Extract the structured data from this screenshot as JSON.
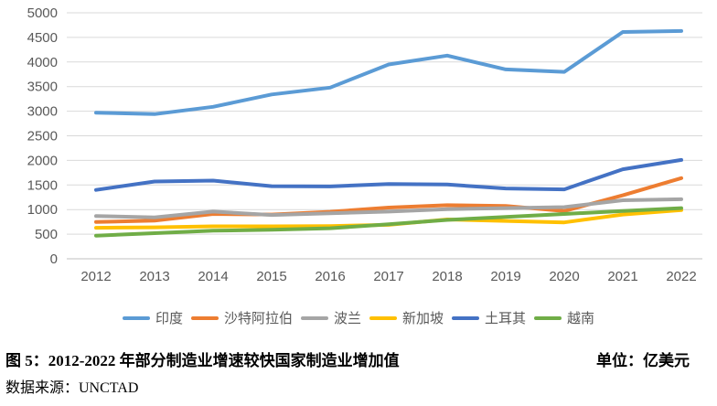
{
  "chart_data": {
    "type": "line",
    "title": "",
    "xlabel": "",
    "ylabel": "",
    "categories": [
      "2012",
      "2013",
      "2014",
      "2015",
      "2016",
      "2017",
      "2018",
      "2019",
      "2020",
      "2021",
      "2022"
    ],
    "series": [
      {
        "name": "印度",
        "color": "#5B9BD5",
        "values": [
          2970,
          2940,
          3090,
          3340,
          3480,
          3950,
          4130,
          3850,
          3800,
          4610,
          4630
        ]
      },
      {
        "name": "沙特阿拉伯",
        "color": "#ED7D31",
        "values": [
          750,
          775,
          910,
          900,
          955,
          1040,
          1090,
          1075,
          970,
          1290,
          1640
        ]
      },
      {
        "name": "波兰",
        "color": "#A5A5A5",
        "values": [
          870,
          840,
          960,
          890,
          925,
          960,
          1010,
          1030,
          1050,
          1190,
          1210
        ]
      },
      {
        "name": "新加坡",
        "color": "#FFC000",
        "values": [
          630,
          640,
          660,
          660,
          665,
          690,
          800,
          770,
          740,
          900,
          990
        ]
      },
      {
        "name": "土耳其",
        "color": "#4472C4",
        "values": [
          1400,
          1570,
          1590,
          1475,
          1470,
          1520,
          1510,
          1430,
          1410,
          1820,
          2010
        ]
      },
      {
        "name": "越南",
        "color": "#70AD47",
        "values": [
          470,
          520,
          570,
          590,
          620,
          700,
          790,
          850,
          910,
          970,
          1030
        ]
      }
    ],
    "ylim": [
      0,
      5000
    ],
    "ytick_step": 500,
    "grid": "horizontal-only",
    "gridline_color": "#D9D9D9",
    "axis_label_color": "#595959",
    "legend_position": "bottom"
  },
  "footer": {
    "caption": "图 5：2012-2022 年部分制造业增速较快国家制造业增加值",
    "unit_label": "单位：亿美元",
    "source": "数据来源：UNCTAD"
  }
}
